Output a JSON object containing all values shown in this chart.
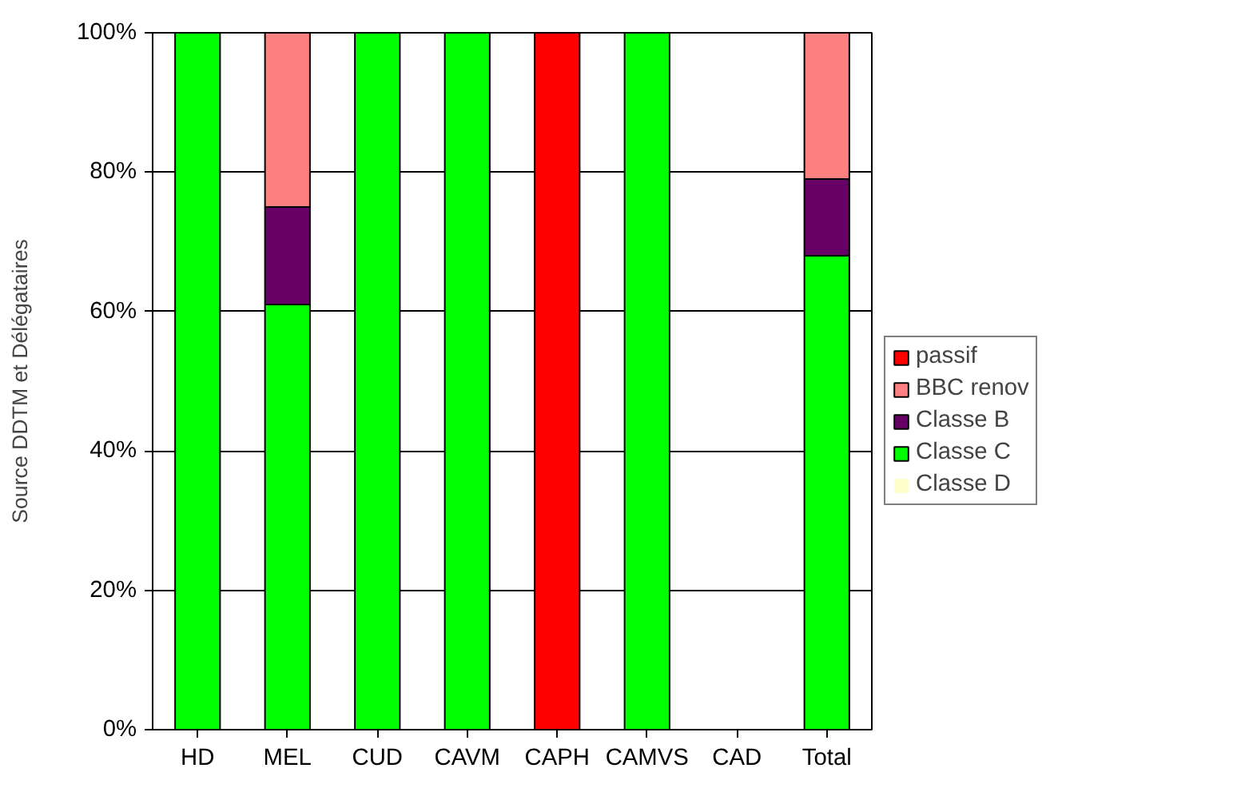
{
  "chart_data": {
    "type": "bar",
    "stacked": true,
    "ylabel": "Source DDTM et Délégataires",
    "categories": [
      "HD",
      "MEL",
      "CUD",
      "CAVM",
      "CAPH",
      "CAMVS",
      "CAD",
      "Total"
    ],
    "series": [
      {
        "name": "Classe D",
        "color": "#ffffcc",
        "values": [
          0,
          0,
          0,
          0,
          0,
          0,
          0,
          0
        ]
      },
      {
        "name": "Classe C",
        "color": "#00ff00",
        "values": [
          100,
          61,
          100,
          100,
          0,
          100,
          0,
          68
        ]
      },
      {
        "name": "Classe B",
        "color": "#660066",
        "values": [
          0,
          14,
          0,
          0,
          0,
          0,
          0,
          11
        ]
      },
      {
        "name": "BBC renov",
        "color": "#ff8080",
        "values": [
          0,
          25,
          0,
          0,
          0,
          0,
          0,
          21
        ]
      },
      {
        "name": "passif",
        "color": "#ff0000",
        "values": [
          0,
          0,
          0,
          0,
          100,
          0,
          0,
          0
        ]
      }
    ],
    "ylim": [
      0,
      100
    ],
    "yticks": [
      {
        "value": 0,
        "label": "0%"
      },
      {
        "value": 20,
        "label": "20%"
      },
      {
        "value": 40,
        "label": "40%"
      },
      {
        "value": 60,
        "label": "60%"
      },
      {
        "value": 80,
        "label": "80%"
      },
      {
        "value": 100,
        "label": "100%"
      }
    ],
    "grid": "y",
    "legend": "right"
  }
}
